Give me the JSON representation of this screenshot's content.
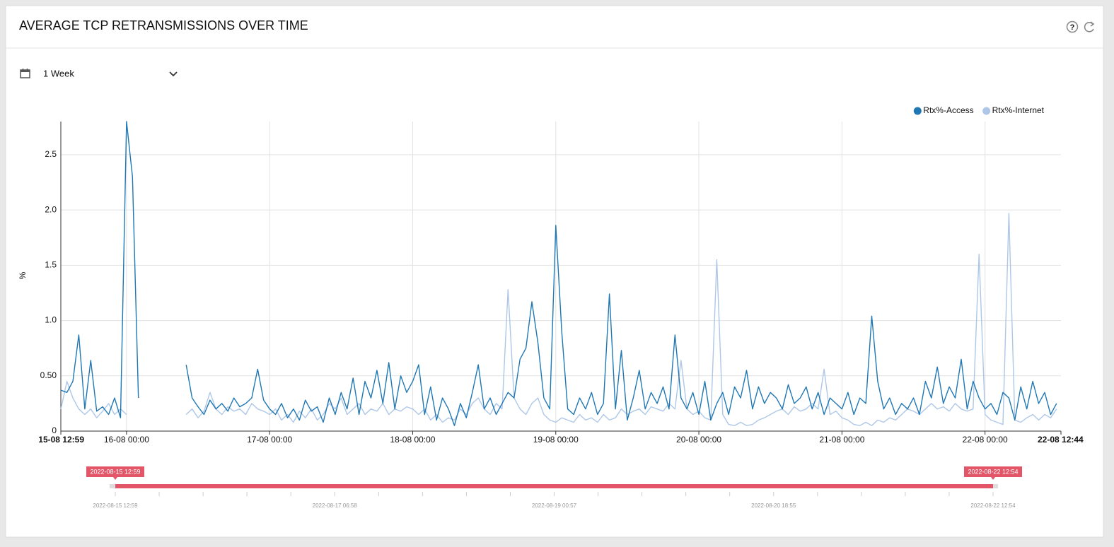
{
  "panel": {
    "title": "AVERAGE TCP RETRANSMISSIONS OVER TIME",
    "period": "1 Week"
  },
  "chart_data": {
    "type": "line",
    "y_label": "%",
    "ylim": [
      0,
      2.8
    ],
    "yticks": [
      0,
      {
        "value": 0.5,
        "label": "0.50"
      },
      {
        "value": 1,
        "label": "1.0"
      },
      {
        "value": 1.5,
        "label": "1.5"
      },
      {
        "value": 2,
        "label": "2.0"
      },
      {
        "value": 2.5,
        "label": "2.5"
      }
    ],
    "xlim": [
      "2022-08-15 12:59",
      "2022-08-22 12:44"
    ],
    "xticks": [
      {
        "value": "2022-08-15 12:59",
        "label": "15-08 12:59"
      },
      {
        "value": "2022-08-16 00:00",
        "label": "16-08 00:00"
      },
      {
        "value": "2022-08-17 00:00",
        "label": "17-08 00:00"
      },
      {
        "value": "2022-08-18 00:00",
        "label": "18-08 00:00"
      },
      {
        "value": "2022-08-19 00:00",
        "label": "19-08 00:00"
      },
      {
        "value": "2022-08-20 00:00",
        "label": "20-08 00:00"
      },
      {
        "value": "2022-08-21 00:00",
        "label": "21-08 00:00"
      },
      {
        "value": "2022-08-22 00:00",
        "label": "22-08 00:00"
      },
      {
        "value": "2022-08-22 12:44",
        "label": "22-08 12:44"
      }
    ],
    "grid": true,
    "legend": "top-right",
    "x": [
      "2022-08-15 13:00",
      "2022-08-15 14:00",
      "2022-08-15 15:00",
      "2022-08-15 16:00",
      "2022-08-15 17:00",
      "2022-08-15 18:00",
      "2022-08-15 19:00",
      "2022-08-15 20:00",
      "2022-08-15 21:00",
      "2022-08-15 22:00",
      "2022-08-15 23:00",
      "2022-08-16 00:00",
      "2022-08-16 01:00",
      "2022-08-16 02:00",
      "2022-08-16 03:00",
      "2022-08-16 04:00",
      "2022-08-16 05:00",
      "2022-08-16 06:00",
      "2022-08-16 07:00",
      "2022-08-16 08:00",
      "2022-08-16 09:00",
      "2022-08-16 10:00",
      "2022-08-16 11:00",
      "2022-08-16 12:00",
      "2022-08-16 13:00",
      "2022-08-16 14:00",
      "2022-08-16 15:00",
      "2022-08-16 16:00",
      "2022-08-16 17:00",
      "2022-08-16 18:00",
      "2022-08-16 19:00",
      "2022-08-16 20:00",
      "2022-08-16 21:00",
      "2022-08-16 22:00",
      "2022-08-16 23:00",
      "2022-08-17 00:00",
      "2022-08-17 01:00",
      "2022-08-17 02:00",
      "2022-08-17 03:00",
      "2022-08-17 04:00",
      "2022-08-17 05:00",
      "2022-08-17 06:00",
      "2022-08-17 07:00",
      "2022-08-17 08:00",
      "2022-08-17 09:00",
      "2022-08-17 10:00",
      "2022-08-17 11:00",
      "2022-08-17 12:00",
      "2022-08-17 13:00",
      "2022-08-17 14:00",
      "2022-08-17 15:00",
      "2022-08-17 16:00",
      "2022-08-17 17:00",
      "2022-08-17 18:00",
      "2022-08-17 19:00",
      "2022-08-17 20:00",
      "2022-08-17 21:00",
      "2022-08-17 22:00",
      "2022-08-17 23:00",
      "2022-08-18 00:00",
      "2022-08-18 01:00",
      "2022-08-18 02:00",
      "2022-08-18 03:00",
      "2022-08-18 04:00",
      "2022-08-18 05:00",
      "2022-08-18 06:00",
      "2022-08-18 07:00",
      "2022-08-18 08:00",
      "2022-08-18 09:00",
      "2022-08-18 10:00",
      "2022-08-18 11:00",
      "2022-08-18 12:00",
      "2022-08-18 13:00",
      "2022-08-18 14:00",
      "2022-08-18 15:00",
      "2022-08-18 16:00",
      "2022-08-18 17:00",
      "2022-08-18 18:00",
      "2022-08-18 19:00",
      "2022-08-18 20:00",
      "2022-08-18 21:00",
      "2022-08-18 22:00",
      "2022-08-18 23:00",
      "2022-08-19 00:00",
      "2022-08-19 01:00",
      "2022-08-19 02:00",
      "2022-08-19 03:00",
      "2022-08-19 04:00",
      "2022-08-19 05:00",
      "2022-08-19 06:00",
      "2022-08-19 07:00",
      "2022-08-19 08:00",
      "2022-08-19 09:00",
      "2022-08-19 10:00",
      "2022-08-19 11:00",
      "2022-08-19 12:00",
      "2022-08-19 13:00",
      "2022-08-19 14:00",
      "2022-08-19 15:00",
      "2022-08-19 16:00",
      "2022-08-19 17:00",
      "2022-08-19 18:00",
      "2022-08-19 19:00",
      "2022-08-19 20:00",
      "2022-08-19 21:00",
      "2022-08-19 22:00",
      "2022-08-19 23:00",
      "2022-08-20 00:00",
      "2022-08-20 01:00",
      "2022-08-20 02:00",
      "2022-08-20 03:00",
      "2022-08-20 04:00",
      "2022-08-20 05:00",
      "2022-08-20 06:00",
      "2022-08-20 07:00",
      "2022-08-20 08:00",
      "2022-08-20 09:00",
      "2022-08-20 10:00",
      "2022-08-20 11:00",
      "2022-08-20 12:00",
      "2022-08-20 13:00",
      "2022-08-20 14:00",
      "2022-08-20 15:00",
      "2022-08-20 16:00",
      "2022-08-20 17:00",
      "2022-08-20 18:00",
      "2022-08-20 19:00",
      "2022-08-20 20:00",
      "2022-08-20 21:00",
      "2022-08-20 22:00",
      "2022-08-20 23:00",
      "2022-08-21 00:00",
      "2022-08-21 01:00",
      "2022-08-21 02:00",
      "2022-08-21 03:00",
      "2022-08-21 04:00",
      "2022-08-21 05:00",
      "2022-08-21 06:00",
      "2022-08-21 07:00",
      "2022-08-21 08:00",
      "2022-08-21 09:00",
      "2022-08-21 10:00",
      "2022-08-21 11:00",
      "2022-08-21 12:00",
      "2022-08-21 13:00",
      "2022-08-21 14:00",
      "2022-08-21 15:00",
      "2022-08-21 16:00",
      "2022-08-21 17:00",
      "2022-08-21 18:00",
      "2022-08-21 19:00",
      "2022-08-21 20:00",
      "2022-08-21 21:00",
      "2022-08-21 22:00",
      "2022-08-21 23:00",
      "2022-08-22 00:00",
      "2022-08-22 01:00",
      "2022-08-22 02:00",
      "2022-08-22 03:00",
      "2022-08-22 04:00",
      "2022-08-22 05:00",
      "2022-08-22 06:00",
      "2022-08-22 07:00",
      "2022-08-22 08:00",
      "2022-08-22 09:00",
      "2022-08-22 10:00",
      "2022-08-22 11:00",
      "2022-08-22 12:00"
    ],
    "series": [
      {
        "name": "Rtx%-Access",
        "color": "#1f77b4",
        "values": [
          0.37,
          0.35,
          0.45,
          0.87,
          0.2,
          0.64,
          0.18,
          0.22,
          0.15,
          0.3,
          0.12,
          2.8,
          2.3,
          0.3,
          null,
          null,
          null,
          null,
          null,
          null,
          null,
          0.6,
          0.3,
          0.22,
          0.15,
          0.28,
          0.2,
          0.25,
          0.18,
          0.3,
          0.22,
          0.25,
          0.3,
          0.56,
          0.28,
          0.2,
          0.15,
          0.25,
          0.12,
          0.2,
          0.1,
          0.28,
          0.18,
          0.22,
          0.08,
          0.3,
          0.15,
          0.35,
          0.2,
          0.48,
          0.15,
          0.45,
          0.3,
          0.55,
          0.25,
          0.62,
          0.2,
          0.5,
          0.35,
          0.45,
          0.6,
          0.15,
          0.4,
          0.1,
          0.3,
          0.2,
          0.05,
          0.25,
          0.12,
          0.35,
          0.6,
          0.2,
          0.3,
          0.15,
          0.25,
          0.35,
          0.3,
          0.65,
          0.75,
          1.17,
          0.8,
          0.3,
          0.2,
          1.86,
          0.9,
          0.2,
          0.15,
          0.3,
          0.2,
          0.35,
          0.15,
          0.25,
          1.24,
          0.2,
          0.73,
          0.1,
          0.3,
          0.55,
          0.2,
          0.35,
          0.25,
          0.4,
          0.2,
          0.87,
          0.3,
          0.2,
          0.35,
          0.15,
          0.45,
          0.1,
          0.25,
          0.35,
          0.15,
          0.4,
          0.3,
          0.55,
          0.2,
          0.4,
          0.25,
          0.35,
          0.3,
          0.2,
          0.42,
          0.25,
          0.3,
          0.4,
          0.2,
          0.35,
          0.15,
          0.3,
          0.25,
          0.2,
          0.35,
          0.15,
          0.3,
          0.25,
          1.04,
          0.45,
          0.2,
          0.3,
          0.15,
          0.25,
          0.2,
          0.3,
          0.15,
          0.45,
          0.3,
          0.58,
          0.25,
          0.4,
          0.3,
          0.65,
          0.2,
          0.45,
          0.3,
          0.2,
          0.25,
          0.15,
          0.35,
          0.3,
          0.1,
          0.4,
          0.2,
          0.45,
          0.25,
          0.35,
          0.15,
          0.25
        ]
      },
      {
        "name": "Rtx%-Internet",
        "color": "#aec7e8",
        "values": [
          0.2,
          0.45,
          0.3,
          0.2,
          0.15,
          0.2,
          0.12,
          0.18,
          0.25,
          0.15,
          0.2,
          0.15,
          null,
          null,
          null,
          null,
          null,
          null,
          null,
          null,
          null,
          0.15,
          0.2,
          0.12,
          0.18,
          0.35,
          0.2,
          0.15,
          0.22,
          0.18,
          0.2,
          0.15,
          0.25,
          0.2,
          0.18,
          0.15,
          0.2,
          0.1,
          0.15,
          0.08,
          0.18,
          0.12,
          0.2,
          0.1,
          0.15,
          0.25,
          0.2,
          0.3,
          0.15,
          0.2,
          0.25,
          0.15,
          0.2,
          0.18,
          0.25,
          0.15,
          0.2,
          0.18,
          0.22,
          0.2,
          0.15,
          0.2,
          0.1,
          0.15,
          0.08,
          0.12,
          0.1,
          0.2,
          0.15,
          0.25,
          0.3,
          0.2,
          0.15,
          0.25,
          0.2,
          1.28,
          0.3,
          0.2,
          0.15,
          0.25,
          0.3,
          0.15,
          0.1,
          0.08,
          0.12,
          0.1,
          0.08,
          0.15,
          0.1,
          0.12,
          0.08,
          0.15,
          0.1,
          0.12,
          0.2,
          0.15,
          0.18,
          0.2,
          0.15,
          0.22,
          0.2,
          0.18,
          0.25,
          0.2,
          0.64,
          0.2,
          0.15,
          0.18,
          0.12,
          0.1,
          1.55,
          0.15,
          0.06,
          0.05,
          0.08,
          0.05,
          0.06,
          0.1,
          0.12,
          0.15,
          0.18,
          0.2,
          0.15,
          0.22,
          0.18,
          0.2,
          0.25,
          0.2,
          0.56,
          0.15,
          0.18,
          0.12,
          0.1,
          0.06,
          0.05,
          0.08,
          0.05,
          0.1,
          0.08,
          0.12,
          0.1,
          0.15,
          0.2,
          0.18,
          0.15,
          0.2,
          0.25,
          0.2,
          0.22,
          0.18,
          0.25,
          0.2,
          0.18,
          0.2,
          1.6,
          0.15,
          0.1,
          0.08,
          0.06,
          1.97,
          0.1,
          0.08,
          0.12,
          0.15,
          0.1,
          0.15,
          0.12,
          0.2
        ]
      }
    ]
  },
  "range_selector": {
    "start_label": "2022-08-15 12:59",
    "end_label": "2022-08-22 12:54",
    "axis_labels": [
      "2022-08-15 12:59",
      "2022-08-17 06:58",
      "2022-08-19 00:57",
      "2022-08-20 18:55",
      "2022-08-22 12:54"
    ]
  }
}
